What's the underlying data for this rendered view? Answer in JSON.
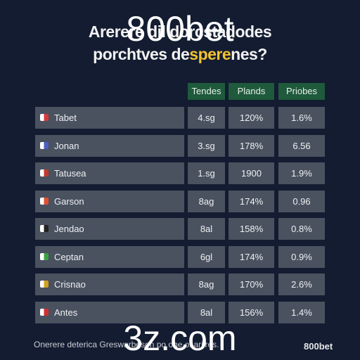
{
  "header": {
    "title_line1": "Arereré dil dorcstadodes",
    "title_line2_start": "porchtves de",
    "title_line2_highlight": "spere",
    "title_line2_end": "nes?"
  },
  "table": {
    "columns": [
      "Tendes",
      "Plands",
      "Priobes"
    ],
    "rows": [
      [
        "Tabet",
        "4.sg",
        "120%",
        "1.6%"
      ],
      [
        "Jonan",
        "3.sg",
        "178%",
        "6.56"
      ],
      [
        "Tatusea",
        "1.sg",
        "1900",
        "1.9%"
      ],
      [
        "Garson",
        "8ag",
        "174%",
        "0.96"
      ],
      [
        "Jendao",
        "8al",
        "158%",
        "0.8%"
      ],
      [
        "Ceptan",
        "6gl",
        "174%",
        "0.9%"
      ],
      [
        "Crisnao",
        "8ag",
        "170%",
        "2.6%"
      ],
      [
        "Antes",
        "8al",
        "156%",
        "1.4%"
      ]
    ]
  },
  "footer": {
    "note": "Onerere deterica Greswarbeson po ohe ol arilres.",
    "logo": "800bet"
  },
  "watermarks": {
    "top": "800bet",
    "bottom": "3z.com"
  }
}
